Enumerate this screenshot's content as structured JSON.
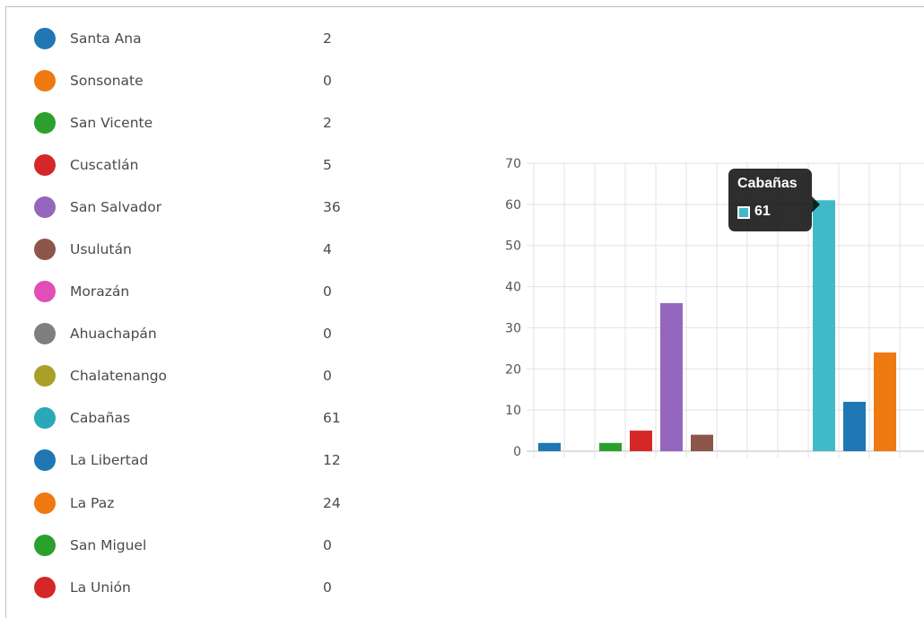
{
  "legend": {
    "items": [
      {
        "label": "Santa Ana",
        "value": "2",
        "color": "#1f77b4"
      },
      {
        "label": "Sonsonate",
        "value": "0",
        "color": "#ef7a12"
      },
      {
        "label": "San Vicente",
        "value": "2",
        "color": "#2ca02c"
      },
      {
        "label": "Cuscatlán",
        "value": "5",
        "color": "#d62728"
      },
      {
        "label": "San Salvador",
        "value": "36",
        "color": "#9467bd"
      },
      {
        "label": "Usulután",
        "value": "4",
        "color": "#8c564b"
      },
      {
        "label": "Morazán",
        "value": "0",
        "color": "#e04fb7"
      },
      {
        "label": "Ahuachapán",
        "value": "0",
        "color": "#7f7f7f"
      },
      {
        "label": "Chalatenango",
        "value": "0",
        "color": "#aaa028"
      },
      {
        "label": "Cabañas",
        "value": "61",
        "color": "#2aa8b6"
      },
      {
        "label": "La Libertad",
        "value": "12",
        "color": "#1f77b4"
      },
      {
        "label": "La Paz",
        "value": "24",
        "color": "#ef7a12"
      },
      {
        "label": "San Miguel",
        "value": "0",
        "color": "#2ca02c"
      },
      {
        "label": "La Unión",
        "value": "0",
        "color": "#d62728"
      }
    ]
  },
  "tooltip": {
    "title": "Cabañas",
    "value": "61",
    "color": "#3fbac9"
  },
  "chart_data": {
    "type": "bar",
    "categories": [
      "Santa Ana",
      "Sonsonate",
      "San Vicente",
      "Cuscatlán",
      "San Salvador",
      "Usulután",
      "Morazán",
      "Ahuachapán",
      "Chalatenango",
      "Cabañas",
      "La Libertad",
      "La Paz",
      "San Miguel",
      "La Unión"
    ],
    "values": [
      2,
      0,
      2,
      5,
      36,
      4,
      0,
      0,
      0,
      61,
      12,
      24,
      0,
      0
    ],
    "colors": [
      "#1f77b4",
      "#ef7a12",
      "#2ca02c",
      "#d62728",
      "#9467bd",
      "#8c564b",
      "#e04fb7",
      "#7f7f7f",
      "#aaa028",
      "#3fbac9",
      "#1f77b4",
      "#ef7a12",
      "#2ca02c",
      "#d62728"
    ],
    "ylim": [
      0,
      70
    ],
    "yticks": [
      0,
      10,
      20,
      30,
      40,
      50,
      60,
      70
    ],
    "grid": true,
    "xlabel": "",
    "ylabel": "",
    "title": ""
  }
}
